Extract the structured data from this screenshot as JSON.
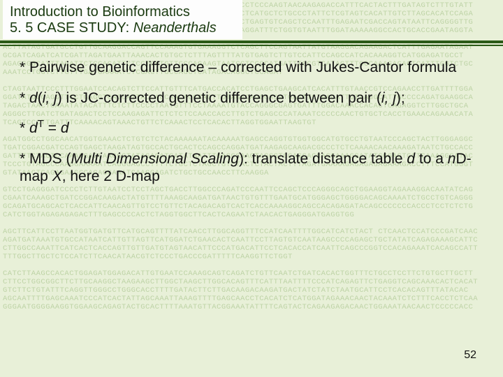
{
  "header": {
    "line1": "Introduction to Bioinformatics",
    "line2_prefix": "5. 5 CASE STUDY: ",
    "line2_italic": "Neanderthals"
  },
  "bullets": {
    "b1": "* Pairwise genetic difference – corrected with Jukes-Cantor formula",
    "b2_pre": "* ",
    "b2_d": "d",
    "b2_paren1": "(",
    "b2_ij1": "i, j",
    "b2_paren2": ")",
    "b2_mid": "  is JC-corrected genetic difference between pair (",
    "b2_ij2": "i, j",
    "b2_end": ");",
    "b3_pre": "* ",
    "b3_d": "d",
    "b3_T": "T",
    "b3_eq": " = ",
    "b3_d2": "d",
    "b4_pre": " * MDS (",
    "b4_mds": "Multi Dimensional Scaling",
    "b4_mid": "): translate distance table ",
    "b4_d": "d",
    "b4_to": " to a ",
    "b4_n": "n",
    "b4_map": "D-map ",
    "b4_X": "X",
    "b4_end": ", here 2 D-map"
  },
  "page_number": "52",
  "dna_background": "GTTCTTTATGAGGGGATGGGGCCATTTGGGAACAATACCCAACAATTCCTCCTCCCAAGTAACAAGAGACCATTTCACTACTTTGATAGTCTTTGTATT\nAACGATAAGACATCTAAGTCCGTTCCTCTTGTGAATCCACTTATGACTTACTCATGCTCTGCCCTATTCTCGTAGTCACATTGTCTTAGCACATCCAGA\nCGCAGGTTCACTCAGATTTGAGGCTATAAATTCTTCAACAGATCATGTCTCTGAGTGTCAGCTCCAATTTGAGAATCGACCAGTATAATTCAGGGGTTG\nCTTTCACAGATTCAGGAGTGTATCAGGAACTGCAAACGTTGACAAACACCAGGATTTCTGGTGTAATTTGGATAAAAAGGCCACTGCACCGAATAGGTA\n\nACTTATAGTGATGCCTGTTGCAAGGACCAGTTCCAAAGTGTGAAAGGTCTCAGCTTCCAGTAATTATGTAAGGACAGAAGACTCATTTGAGAATAGAAT\nGCGATCAGATCATCGATTAGATGAATTAAACACTGTGCTCTTTAGTTTTATGTGAGTCTTGTCCATTCCAGCCATCACAAAGGTCATGGAGATGCCT\nAGAGGGGCATTTAGATTCTCCACATTCTCCTCATGTTCCCAGAAGTAATCCTCCCCATGATTTGCGTCATAGTTTGCCAAAGACAGTCATTTGGTCTGC\nAAATCCTGGTCTTGTTTGATGAAAATCTCGAGTTGCCAGCTCATAGACAGGCTCCAGAT\n\nCTAGTAATTCCCTTTGGAATCCACAGTCTTCCATTGTTTCATGACCACATCCTGAGCTGAAGCATCACATTTGTAACCGTCCAGAACCTTGATTTTGGA\nGGATATGGGAGGTTCCTGAGGTCAGCATTACCAGCAACACCCAGTTGTAGACAGCGACATGAATTCTAACATTGTAAGGCATTGCCCCAGATGAAGGCA\nTAGACTAACTCAAATATACATTTCTCTTCCCCTAATGTTTCCTAAAATGTACCAGGGCGAGTGATTTGGACAAACCACACTCAGAGGTCTTGGCTGCA\nAGGGCTTGATCTGATAGACTCCTCCAAGAGATTCTCTCTCCAACCACCTTGTCTGAGCCCATAAATCCCCCAACTGTGCTCACCTGAAACAGAAACATA\nTCAGTCCCTTGATTTCAAAACAGTAAACTGTTCTCAAACTCCTCACACTTAGGTGGAATTAAGTGT\n\nAGATGGCCTGGCAACATGGTGAAACTCTGTCTCTACAAAAAATACAAAAATGAGCCAGGTGTGGTGGCATGTGCCTGTAATCCCAGCTACTTGGGAGGC\nTGATCGGACGATCCAGTGAGCTAAGATAGTGCCACTGCACTCCAGCCAGGATGATAAGAGCAAGACGCCCTCTCAAAACAACAAAGATAATCTGCCACC\nGATTTTCTAGTCCAAAGGACCAAGGCTATAGAGATGATATAATTTCAGGCAAGTAGGGTCCAGGACCAGGAAAGGATATGGGAGTGCTCAAAGGCATAC\nTCCCTGTAGCCCAAGGAAAAATCAGGGAGCCTTTTCTGCTCTAGCTGTCTACTCTACTACTTTAGATGAAAAGAGAGAGAGAAAGACCTTTCCATGGGT\nGTATAACTCAGAGAAGCCAGAGGAAATCAAGGAGATCTGCTGCCAACCTTCAAGGA\n\nGTCCTGAGGGATCCCCTCTTGTAATCCTCCTAGCTGACCTTGGCCCAGATCCCAATTCCAGCTCCCAGGGCAGCTGGAAGGTAGAAAGGACAATATCAG\nCGAATCAAAGCTGATCCGGACAAGACTATGTTTTAAAGCAAGATGATAACTGTGTTTGAATGCATGGGAGCTGGGGACAGCAAAATCTGCCTGTCAGGG\nGCAGATGCAGCACTCACCATTCAACAGTTGTCCTGTTCTACAGACAGTCACTCACCAAAAGGCAGCCACAGAGATACAGCCCCCCCACCCTCCTCTCTG\nCATCTGGTAGAGAGAGACTTTGAGCCCCACTCTAGGTGGCTTCACTCAGAATCTAACACTGAGGGATGAGGTGG\n\nAGCTTCATTCCTTAATGGTGATGTTCATGCAGTTTTATCAACCTTGGCAGGTTTCCATCAATTTTGGCATCATCTACT CTCAACTCCATCCCGATCAAC\nAGATGATAAATGTGCCATAATCATTGTTAGTTCATGGATCTGAACACTCAATTCCTTAGTGTCAATAAGCCCCAGAGCTGCTATATCAGAGAAAGCATTC\nCTTGGCCAAATTCATCACTCACCAGTTGTTGATGTAGTAACATTCCCATGACATTCCTCACACCATCAATTCAGCCCGGTCCACAGAAATCACAGCCATT\nTTTGGCTTGCTCTCCATCTTCAACATAACGTCTCCCTGACCCGATTTTTCAAGGTTCTGGT\n\nCATCTTAAGCCACACTGGAGATGGAGACATTGTGAATCCAAAGCAGTCAGATCTGTTCAATCTGATCACACTGGTTTCTGCCTCCTTCTGTGCTTGCTT\nCTTCCTGGCGGCTTCTTGCAAGGCTAAGAAGCTTGGCTAAGCTTGGCACAGTTTCATTTAATTTTCCCATCAGAGTTCTGAGGTCAGCAAACACTCACAT\nGTCTTCTGTATTTCAGGTTGGGCCTGGGCACCTTTTGATACTTCTTGACAAGACAAGATGACTATCTATCTAATGCATTCCTCACACAGTTTATACAC\nAGCAATTTTGAGCAAATCCCATCACTATTAGCAAATTAAAGTTTTGAGCAACCTCACATCTCATGGATAGAAACAACTACAAATCTCTTTCACCTCTCAA\nGGGAATGGGGAAGGTGGAAGCAGAGTACTGCACTTTTAAATGTTACGGAAATATTTTCAGTACTCAGAAGAGACAACTGGAAATAACAACTCCCCCACC"
}
